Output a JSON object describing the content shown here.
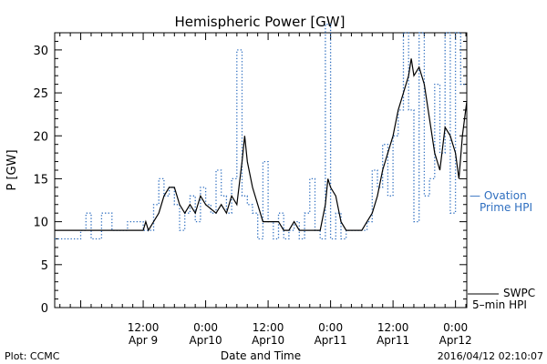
{
  "chart_data": {
    "type": "line",
    "title": "Hemispheric Power [GW]",
    "ylabel": "P [GW]",
    "xlabel": "Date and Time",
    "ylim": [
      0,
      32
    ],
    "yticks": [
      0,
      5,
      10,
      15,
      20,
      25,
      30
    ],
    "xlim": [
      "2016-04-08T19:00",
      "2016-04-12T02:10"
    ],
    "xticks": [
      {
        "t": "2016-04-09T12:00",
        "line1": "12:00",
        "line2": "Apr 9"
      },
      {
        "t": "2016-04-10T00:00",
        "line1": "0:00",
        "line2": "Apr10"
      },
      {
        "t": "2016-04-10T12:00",
        "line1": "12:00",
        "line2": "Apr10"
      },
      {
        "t": "2016-04-11T00:00",
        "line1": "0:00",
        "line2": "Apr11"
      },
      {
        "t": "2016-04-11T12:00",
        "line1": "12:00",
        "line2": "Apr11"
      },
      {
        "t": "2016-04-12T00:00",
        "line1": "0:00",
        "line2": "Apr12"
      }
    ],
    "series": [
      {
        "legend_line1": "— Ovation",
        "legend_line2": "Prime HPI",
        "color": "#2f6fc0",
        "style": "dotted",
        "points": [
          [
            "2016-04-08T19:00",
            8
          ],
          [
            "2016-04-09T00:00",
            9
          ],
          [
            "2016-04-09T01:00",
            11
          ],
          [
            "2016-04-09T02:00",
            8
          ],
          [
            "2016-04-09T04:00",
            11
          ],
          [
            "2016-04-09T06:00",
            9
          ],
          [
            "2016-04-09T09:00",
            10
          ],
          [
            "2016-04-09T12:00",
            9
          ],
          [
            "2016-04-09T14:00",
            12
          ],
          [
            "2016-04-09T15:00",
            15
          ],
          [
            "2016-04-09T16:00",
            13
          ],
          [
            "2016-04-09T17:00",
            14
          ],
          [
            "2016-04-09T18:00",
            12
          ],
          [
            "2016-04-09T19:00",
            9
          ],
          [
            "2016-04-09T20:00",
            11
          ],
          [
            "2016-04-09T21:00",
            13
          ],
          [
            "2016-04-09T22:00",
            10
          ],
          [
            "2016-04-09T23:00",
            14
          ],
          [
            "2016-04-10T00:00",
            12
          ],
          [
            "2016-04-10T01:00",
            11
          ],
          [
            "2016-04-10T02:00",
            16
          ],
          [
            "2016-04-10T03:00",
            13
          ],
          [
            "2016-04-10T04:00",
            11
          ],
          [
            "2016-04-10T05:00",
            15
          ],
          [
            "2016-04-10T06:00",
            30
          ],
          [
            "2016-04-10T07:00",
            13
          ],
          [
            "2016-04-10T08:00",
            12
          ],
          [
            "2016-04-10T09:00",
            11
          ],
          [
            "2016-04-10T10:00",
            8
          ],
          [
            "2016-04-10T11:00",
            17
          ],
          [
            "2016-04-10T12:00",
            10
          ],
          [
            "2016-04-10T13:00",
            8
          ],
          [
            "2016-04-10T14:00",
            11
          ],
          [
            "2016-04-10T15:00",
            8
          ],
          [
            "2016-04-10T16:00",
            9
          ],
          [
            "2016-04-10T17:00",
            10
          ],
          [
            "2016-04-10T18:00",
            8
          ],
          [
            "2016-04-10T19:00",
            11
          ],
          [
            "2016-04-10T20:00",
            15
          ],
          [
            "2016-04-10T21:00",
            9
          ],
          [
            "2016-04-10T22:00",
            8
          ],
          [
            "2016-04-10T23:00",
            33
          ],
          [
            "2016-04-11T00:00",
            8
          ],
          [
            "2016-04-11T01:00",
            11
          ],
          [
            "2016-04-11T02:00",
            8
          ],
          [
            "2016-04-11T03:00",
            9
          ],
          [
            "2016-04-11T05:00",
            9
          ],
          [
            "2016-04-11T07:00",
            10
          ],
          [
            "2016-04-11T08:00",
            16
          ],
          [
            "2016-04-11T09:00",
            14
          ],
          [
            "2016-04-11T10:00",
            19
          ],
          [
            "2016-04-11T11:00",
            13
          ],
          [
            "2016-04-11T12:00",
            20
          ],
          [
            "2016-04-11T13:00",
            23
          ],
          [
            "2016-04-11T14:00",
            32
          ],
          [
            "2016-04-11T15:00",
            23
          ],
          [
            "2016-04-11T16:00",
            10
          ],
          [
            "2016-04-11T17:00",
            32
          ],
          [
            "2016-04-11T18:00",
            13
          ],
          [
            "2016-04-11T19:00",
            15
          ],
          [
            "2016-04-11T20:00",
            26
          ],
          [
            "2016-04-11T21:00",
            18
          ],
          [
            "2016-04-11T22:00",
            32
          ],
          [
            "2016-04-11T23:00",
            11
          ],
          [
            "2016-04-12T00:00",
            32
          ],
          [
            "2016-04-12T01:00",
            26
          ],
          [
            "2016-04-12T02:10",
            26
          ]
        ]
      },
      {
        "legend_line1": "SWPC",
        "legend_line2": "5–min HPI",
        "color": "#000000",
        "style": "solid",
        "points": [
          [
            "2016-04-08T19:00",
            9
          ],
          [
            "2016-04-09T12:00",
            9
          ],
          [
            "2016-04-09T12:30",
            10
          ],
          [
            "2016-04-09T13:00",
            9
          ],
          [
            "2016-04-09T14:00",
            10
          ],
          [
            "2016-04-09T15:00",
            11
          ],
          [
            "2016-04-09T16:00",
            13
          ],
          [
            "2016-04-09T17:00",
            14
          ],
          [
            "2016-04-09T18:00",
            14
          ],
          [
            "2016-04-09T19:00",
            12
          ],
          [
            "2016-04-09T20:00",
            11
          ],
          [
            "2016-04-09T21:00",
            12
          ],
          [
            "2016-04-09T22:00",
            11
          ],
          [
            "2016-04-09T23:00",
            13
          ],
          [
            "2016-04-10T00:00",
            12
          ],
          [
            "2016-04-10T02:00",
            11
          ],
          [
            "2016-04-10T03:00",
            12
          ],
          [
            "2016-04-10T04:00",
            11
          ],
          [
            "2016-04-10T05:00",
            13
          ],
          [
            "2016-04-10T06:00",
            12
          ],
          [
            "2016-04-10T07:00",
            17
          ],
          [
            "2016-04-10T07:30",
            20
          ],
          [
            "2016-04-10T08:00",
            17
          ],
          [
            "2016-04-10T09:00",
            14
          ],
          [
            "2016-04-10T10:00",
            12
          ],
          [
            "2016-04-10T11:00",
            10
          ],
          [
            "2016-04-10T12:00",
            10
          ],
          [
            "2016-04-10T14:00",
            10
          ],
          [
            "2016-04-10T15:00",
            9
          ],
          [
            "2016-04-10T16:00",
            9
          ],
          [
            "2016-04-10T17:00",
            10
          ],
          [
            "2016-04-10T18:00",
            9
          ],
          [
            "2016-04-10T19:00",
            9
          ],
          [
            "2016-04-10T22:00",
            9
          ],
          [
            "2016-04-10T23:00",
            12
          ],
          [
            "2016-04-10T23:30",
            15
          ],
          [
            "2016-04-11T00:00",
            14
          ],
          [
            "2016-04-11T01:00",
            13
          ],
          [
            "2016-04-11T02:00",
            10
          ],
          [
            "2016-04-11T03:00",
            9
          ],
          [
            "2016-04-11T06:00",
            9
          ],
          [
            "2016-04-11T07:00",
            10
          ],
          [
            "2016-04-11T08:00",
            11
          ],
          [
            "2016-04-11T09:00",
            13
          ],
          [
            "2016-04-11T10:00",
            16
          ],
          [
            "2016-04-11T11:00",
            18
          ],
          [
            "2016-04-11T12:00",
            20
          ],
          [
            "2016-04-11T13:00",
            23
          ],
          [
            "2016-04-11T14:00",
            25
          ],
          [
            "2016-04-11T15:00",
            27
          ],
          [
            "2016-04-11T15:30",
            29
          ],
          [
            "2016-04-11T16:00",
            27
          ],
          [
            "2016-04-11T17:00",
            28
          ],
          [
            "2016-04-11T18:00",
            26
          ],
          [
            "2016-04-11T19:00",
            22
          ],
          [
            "2016-04-11T20:00",
            18
          ],
          [
            "2016-04-11T21:00",
            16
          ],
          [
            "2016-04-11T22:00",
            21
          ],
          [
            "2016-04-11T23:00",
            20
          ],
          [
            "2016-04-12T00:00",
            18
          ],
          [
            "2016-04-12T00:40",
            15
          ],
          [
            "2016-04-12T01:20",
            20
          ],
          [
            "2016-04-12T02:10",
            24
          ]
        ]
      }
    ],
    "grid": false,
    "legend_position": "right"
  },
  "footer": {
    "left": "Plot: CCMC",
    "right": "2016/04/12 02:10:07"
  }
}
